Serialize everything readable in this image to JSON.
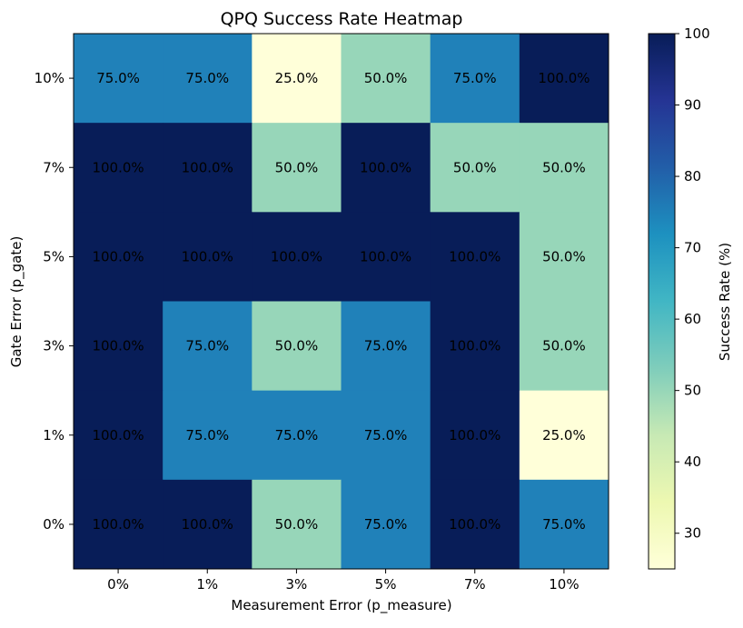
{
  "chart_data": {
    "type": "heatmap",
    "title": "QPQ Success Rate Heatmap",
    "xlabel": "Measurement Error (p_measure)",
    "ylabel": "Gate Error (p_gate)",
    "x_categories": [
      "0%",
      "1%",
      "3%",
      "5%",
      "7%",
      "10%"
    ],
    "y_categories": [
      "10%",
      "7%",
      "5%",
      "3%",
      "1%",
      "0%"
    ],
    "values": [
      [
        75,
        75,
        25,
        50,
        75,
        100
      ],
      [
        100,
        100,
        50,
        100,
        50,
        50
      ],
      [
        100,
        100,
        100,
        100,
        100,
        50
      ],
      [
        100,
        75,
        50,
        75,
        100,
        50
      ],
      [
        100,
        75,
        75,
        75,
        100,
        25
      ],
      [
        100,
        100,
        50,
        75,
        100,
        75
      ]
    ],
    "cell_labels": [
      [
        "75.0%",
        "75.0%",
        "25.0%",
        "50.0%",
        "75.0%",
        "100.0%"
      ],
      [
        "100.0%",
        "100.0%",
        "50.0%",
        "100.0%",
        "50.0%",
        "50.0%"
      ],
      [
        "100.0%",
        "100.0%",
        "100.0%",
        "100.0%",
        "100.0%",
        "50.0%"
      ],
      [
        "100.0%",
        "75.0%",
        "50.0%",
        "75.0%",
        "100.0%",
        "50.0%"
      ],
      [
        "100.0%",
        "75.0%",
        "75.0%",
        "75.0%",
        "100.0%",
        "25.0%"
      ],
      [
        "100.0%",
        "100.0%",
        "50.0%",
        "75.0%",
        "100.0%",
        "75.0%"
      ]
    ],
    "colorbar": {
      "label": "Success Rate (%)",
      "range": [
        25,
        100
      ],
      "ticks": [
        "30",
        "40",
        "50",
        "60",
        "70",
        "80",
        "90",
        "100"
      ],
      "colormap": "YlGnBu",
      "colors": {
        "25": "#ffffd9",
        "50": "#97d6b9",
        "75": "#2081b9",
        "100": "#081d58"
      }
    },
    "grid": false
  }
}
